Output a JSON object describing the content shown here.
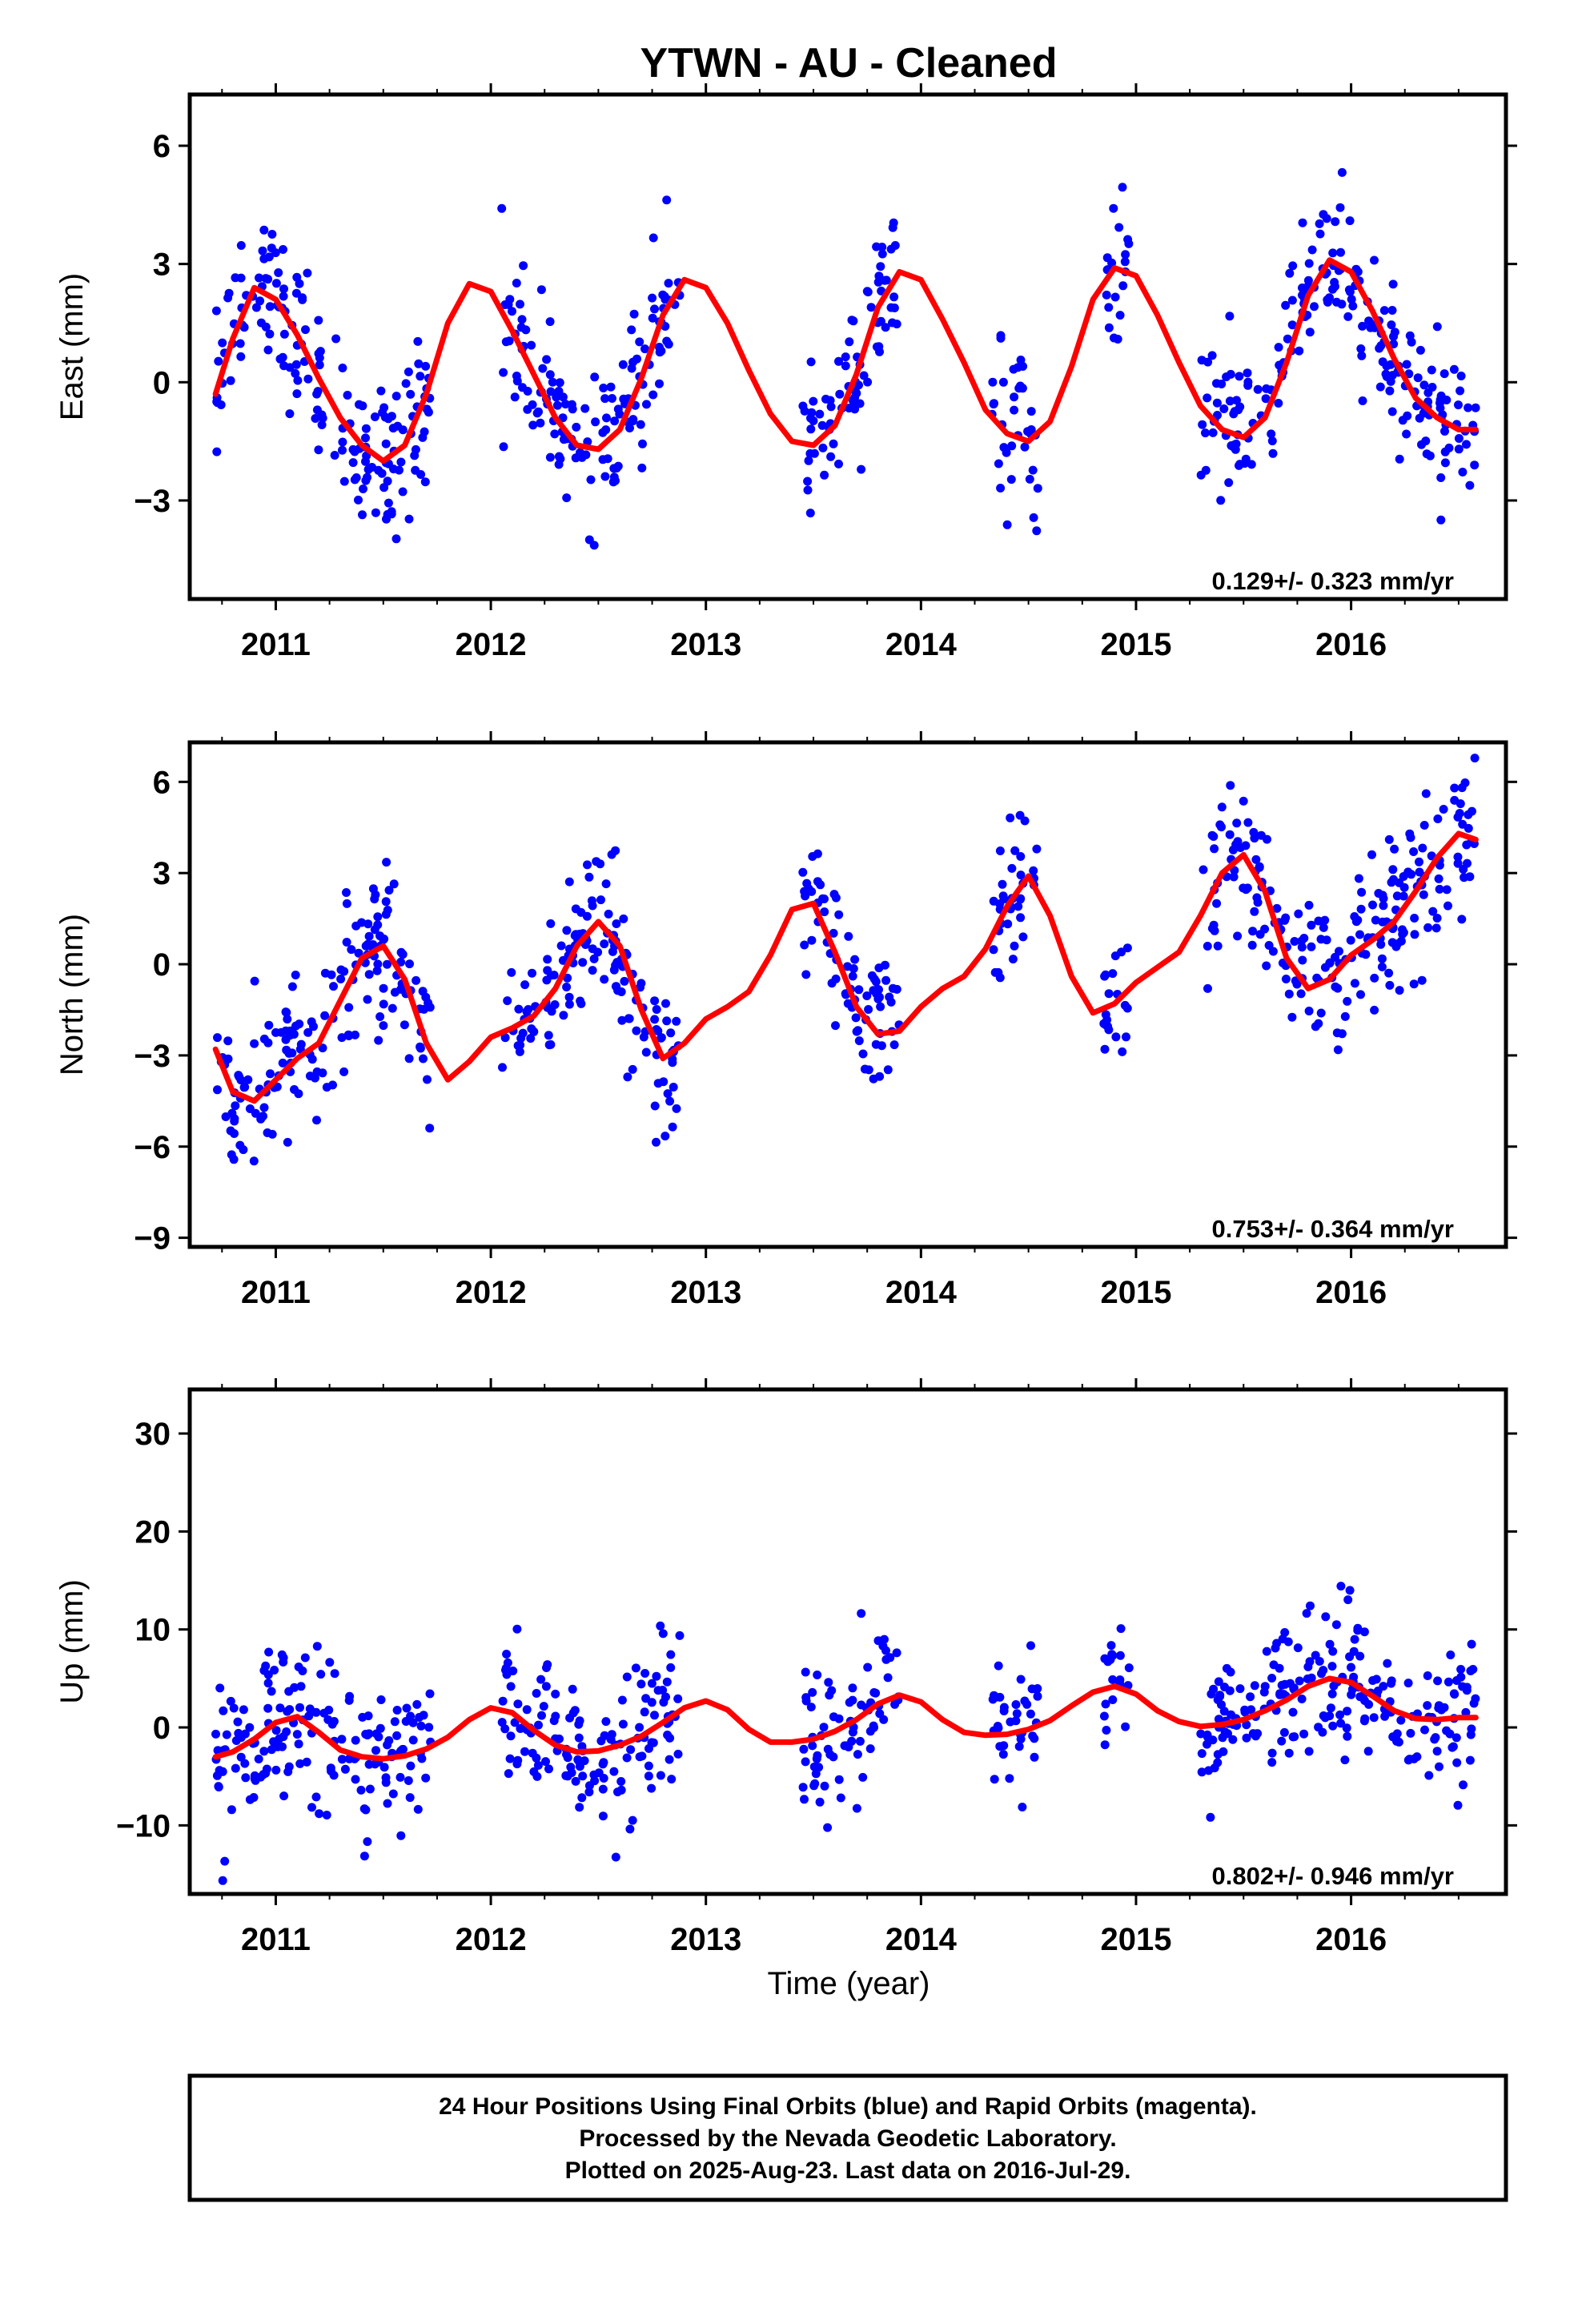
{
  "title": "YTWN  - AU - Cleaned",
  "xlabel": "Time (year)",
  "footer": {
    "lines": [
      "24 Hour Positions Using Final Orbits (blue) and Rapid Orbits (magenta).",
      "Processed by the Nevada Geodetic Laboratory.",
      "Plotted on 2025-Aug-23. Last data on 2016-Jul-29."
    ]
  },
  "colors": {
    "points": "#0000ff",
    "fit": "#ff0000",
    "frame": "#000000"
  },
  "chart_data": [
    {
      "type": "scatter",
      "ylabel": "East (mm)",
      "xlim": [
        2010.6,
        2016.72
      ],
      "ylim": [
        -5.5,
        7.3
      ],
      "xticks": [
        2011,
        2012,
        2013,
        2014,
        2015,
        2016
      ],
      "yticks": [
        -3,
        0,
        3,
        6
      ],
      "rate_label": "0.129+/- 0.323 mm/yr",
      "data_spans": [
        [
          2010.72,
          2011.72
        ],
        [
          2012.05,
          2012.88
        ],
        [
          2013.45,
          2013.9
        ],
        [
          2014.33,
          2014.55
        ],
        [
          2014.85,
          2014.97
        ],
        [
          2015.3,
          2016.58
        ]
      ],
      "series": [
        {
          "name": "",
          "style": "fit-line",
          "x": [
            2010.72,
            2010.8,
            2010.9,
            2011.0,
            2011.1,
            2011.2,
            2011.3,
            2011.4,
            2011.5,
            2011.6,
            2011.7,
            2011.8,
            2011.9,
            2012.0,
            2012.1,
            2012.2,
            2012.3,
            2012.4,
            2012.5,
            2012.6,
            2012.7,
            2012.8,
            2012.9,
            2013.0,
            2013.1,
            2013.2,
            2013.3,
            2013.4,
            2013.5,
            2013.6,
            2013.7,
            2013.8,
            2013.9,
            2014.0,
            2014.1,
            2014.2,
            2014.3,
            2014.4,
            2014.5,
            2014.6,
            2014.7,
            2014.8,
            2014.9,
            2015.0,
            2015.1,
            2015.2,
            2015.3,
            2015.4,
            2015.5,
            2015.6,
            2015.7,
            2015.8,
            2015.9,
            2016.0,
            2016.1,
            2016.2,
            2016.3,
            2016.4,
            2016.5,
            2016.58
          ],
          "values": [
            -0.3,
            1.1,
            2.4,
            2.1,
            1.2,
            0.1,
            -0.9,
            -1.6,
            -2.0,
            -1.6,
            -0.3,
            1.5,
            2.5,
            2.3,
            1.3,
            0.2,
            -0.9,
            -1.6,
            -1.7,
            -1.2,
            0.1,
            1.7,
            2.6,
            2.4,
            1.5,
            0.3,
            -0.8,
            -1.5,
            -1.6,
            -1.1,
            0.2,
            1.9,
            2.8,
            2.6,
            1.6,
            0.5,
            -0.7,
            -1.3,
            -1.5,
            -1.0,
            0.4,
            2.1,
            2.9,
            2.7,
            1.7,
            0.5,
            -0.6,
            -1.2,
            -1.4,
            -0.9,
            0.5,
            2.2,
            3.1,
            2.8,
            1.8,
            0.6,
            -0.4,
            -0.9,
            -1.2,
            -1.2
          ]
        }
      ]
    },
    {
      "type": "scatter",
      "ylabel": "North (mm)",
      "xlim": [
        2010.6,
        2016.72
      ],
      "ylim": [
        -9.3,
        7.3
      ],
      "xticks": [
        2011,
        2012,
        2013,
        2014,
        2015,
        2016
      ],
      "yticks": [
        -9,
        -6,
        -3,
        0,
        3,
        6
      ],
      "rate_label": "0.753+/- 0.364 mm/yr",
      "data_spans": [
        [
          2010.72,
          2011.72
        ],
        [
          2012.05,
          2012.88
        ],
        [
          2013.45,
          2013.9
        ],
        [
          2014.33,
          2014.55
        ],
        [
          2014.85,
          2014.97
        ],
        [
          2015.3,
          2016.58
        ]
      ],
      "series": [
        {
          "name": "",
          "style": "fit-line",
          "x": [
            2010.72,
            2010.8,
            2010.9,
            2011.0,
            2011.1,
            2011.2,
            2011.3,
            2011.4,
            2011.5,
            2011.6,
            2011.7,
            2011.8,
            2011.9,
            2012.0,
            2012.1,
            2012.2,
            2012.3,
            2012.4,
            2012.5,
            2012.6,
            2012.7,
            2012.8,
            2012.9,
            2013.0,
            2013.1,
            2013.2,
            2013.3,
            2013.4,
            2013.5,
            2013.6,
            2013.7,
            2013.8,
            2013.9,
            2014.0,
            2014.1,
            2014.2,
            2014.3,
            2014.4,
            2014.5,
            2014.6,
            2014.7,
            2014.8,
            2014.9,
            2015.0,
            2015.1,
            2015.2,
            2015.3,
            2015.4,
            2015.5,
            2015.6,
            2015.7,
            2015.8,
            2015.9,
            2016.0,
            2016.1,
            2016.2,
            2016.3,
            2016.4,
            2016.5,
            2016.58
          ],
          "values": [
            -2.8,
            -4.2,
            -4.5,
            -3.8,
            -3.1,
            -2.6,
            -1.2,
            0.2,
            0.6,
            -0.5,
            -2.6,
            -3.8,
            -3.2,
            -2.4,
            -2.1,
            -1.7,
            -0.8,
            0.6,
            1.4,
            0.6,
            -1.5,
            -3.1,
            -2.6,
            -1.8,
            -1.4,
            -0.9,
            0.3,
            1.8,
            2.0,
            0.4,
            -1.4,
            -2.3,
            -2.2,
            -1.4,
            -0.8,
            -0.4,
            0.5,
            1.9,
            2.9,
            1.6,
            -0.4,
            -1.6,
            -1.3,
            -0.6,
            -0.1,
            0.4,
            1.6,
            3.0,
            3.6,
            2.4,
            0.2,
            -0.8,
            -0.5,
            0.3,
            0.8,
            1.4,
            2.4,
            3.5,
            4.3,
            4.1
          ]
        }
      ]
    },
    {
      "type": "scatter",
      "ylabel": "Up (mm)",
      "xlim": [
        2010.6,
        2016.72
      ],
      "ylim": [
        -17,
        34.5
      ],
      "xticks": [
        2011,
        2012,
        2013,
        2014,
        2015,
        2016
      ],
      "yticks": [
        -10,
        0,
        10,
        20,
        30
      ],
      "rate_label": "0.802+/- 0.946 mm/yr",
      "data_spans": [
        [
          2010.72,
          2011.72
        ],
        [
          2012.05,
          2012.88
        ],
        [
          2013.45,
          2013.9
        ],
        [
          2014.33,
          2014.55
        ],
        [
          2014.85,
          2014.97
        ],
        [
          2015.3,
          2016.58
        ]
      ],
      "series": [
        {
          "name": "",
          "style": "fit-line",
          "x": [
            2010.72,
            2010.8,
            2010.9,
            2011.0,
            2011.1,
            2011.2,
            2011.3,
            2011.4,
            2011.5,
            2011.6,
            2011.7,
            2011.8,
            2011.9,
            2012.0,
            2012.1,
            2012.2,
            2012.3,
            2012.4,
            2012.5,
            2012.6,
            2012.7,
            2012.8,
            2012.9,
            2013.0,
            2013.1,
            2013.2,
            2013.3,
            2013.4,
            2013.5,
            2013.6,
            2013.7,
            2013.8,
            2013.9,
            2014.0,
            2014.1,
            2014.2,
            2014.3,
            2014.4,
            2014.5,
            2014.6,
            2014.7,
            2014.8,
            2014.9,
            2015.0,
            2015.1,
            2015.2,
            2015.3,
            2015.4,
            2015.5,
            2015.6,
            2015.7,
            2015.8,
            2015.9,
            2016.0,
            2016.1,
            2016.2,
            2016.3,
            2016.4,
            2016.5,
            2016.58
          ],
          "values": [
            -3.0,
            -2.5,
            -1.2,
            0.5,
            1.1,
            -0.5,
            -2.3,
            -3.0,
            -3.2,
            -2.9,
            -2.2,
            -1.0,
            0.8,
            2.0,
            1.5,
            -0.3,
            -1.8,
            -2.5,
            -2.4,
            -1.8,
            -0.9,
            0.5,
            2.0,
            2.7,
            1.8,
            -0.2,
            -1.5,
            -1.5,
            -1.2,
            -0.4,
            0.8,
            2.4,
            3.3,
            2.6,
            0.8,
            -0.5,
            -0.8,
            -0.7,
            -0.2,
            0.7,
            2.2,
            3.6,
            4.2,
            3.4,
            1.7,
            0.6,
            0.1,
            0.3,
            0.8,
            1.7,
            2.8,
            4.2,
            5.0,
            4.6,
            3.2,
            1.7,
            0.9,
            0.8,
            1.0,
            1.0
          ]
        }
      ]
    }
  ]
}
